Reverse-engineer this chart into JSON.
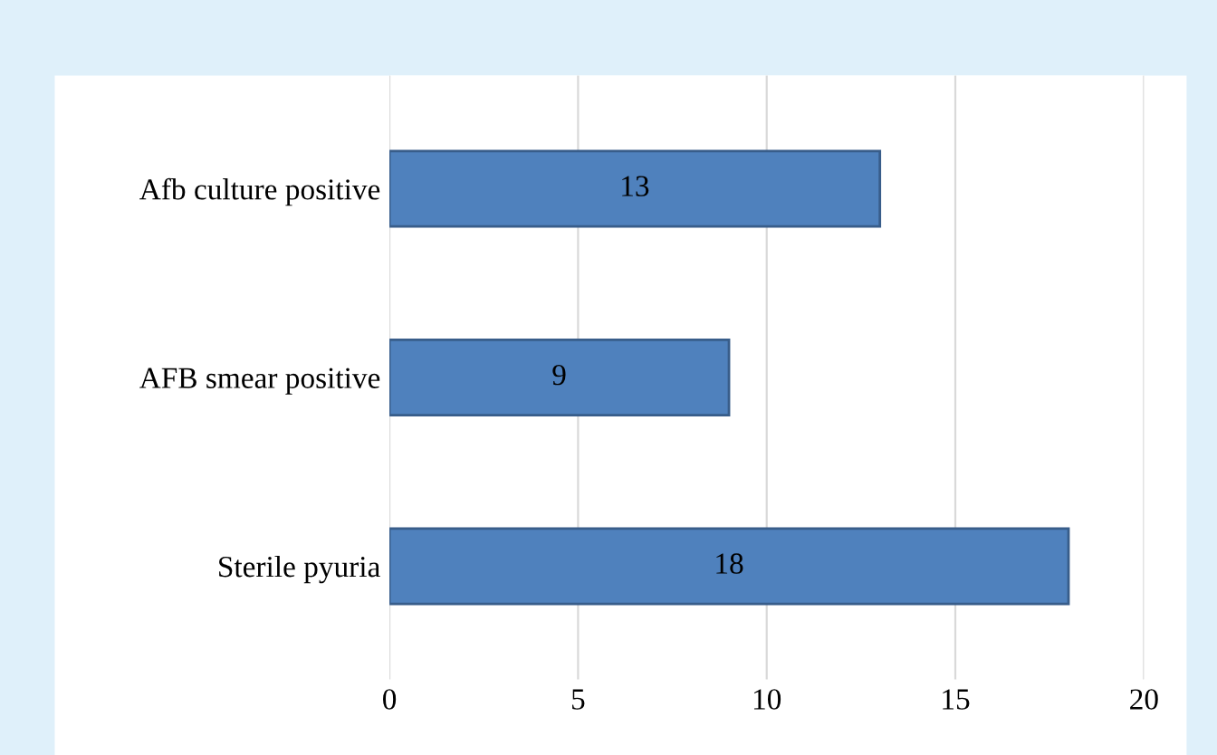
{
  "chart_data": {
    "type": "bar",
    "orientation": "horizontal",
    "categories": [
      "Afb culture positive",
      "AFB smear positive",
      "Sterile pyuria"
    ],
    "values": [
      13,
      9,
      18
    ],
    "color": "#4f81bd",
    "xlim": [
      0,
      20
    ],
    "xticks": [
      0,
      5,
      10,
      15,
      20
    ],
    "grid": "x",
    "data_labels": true
  }
}
